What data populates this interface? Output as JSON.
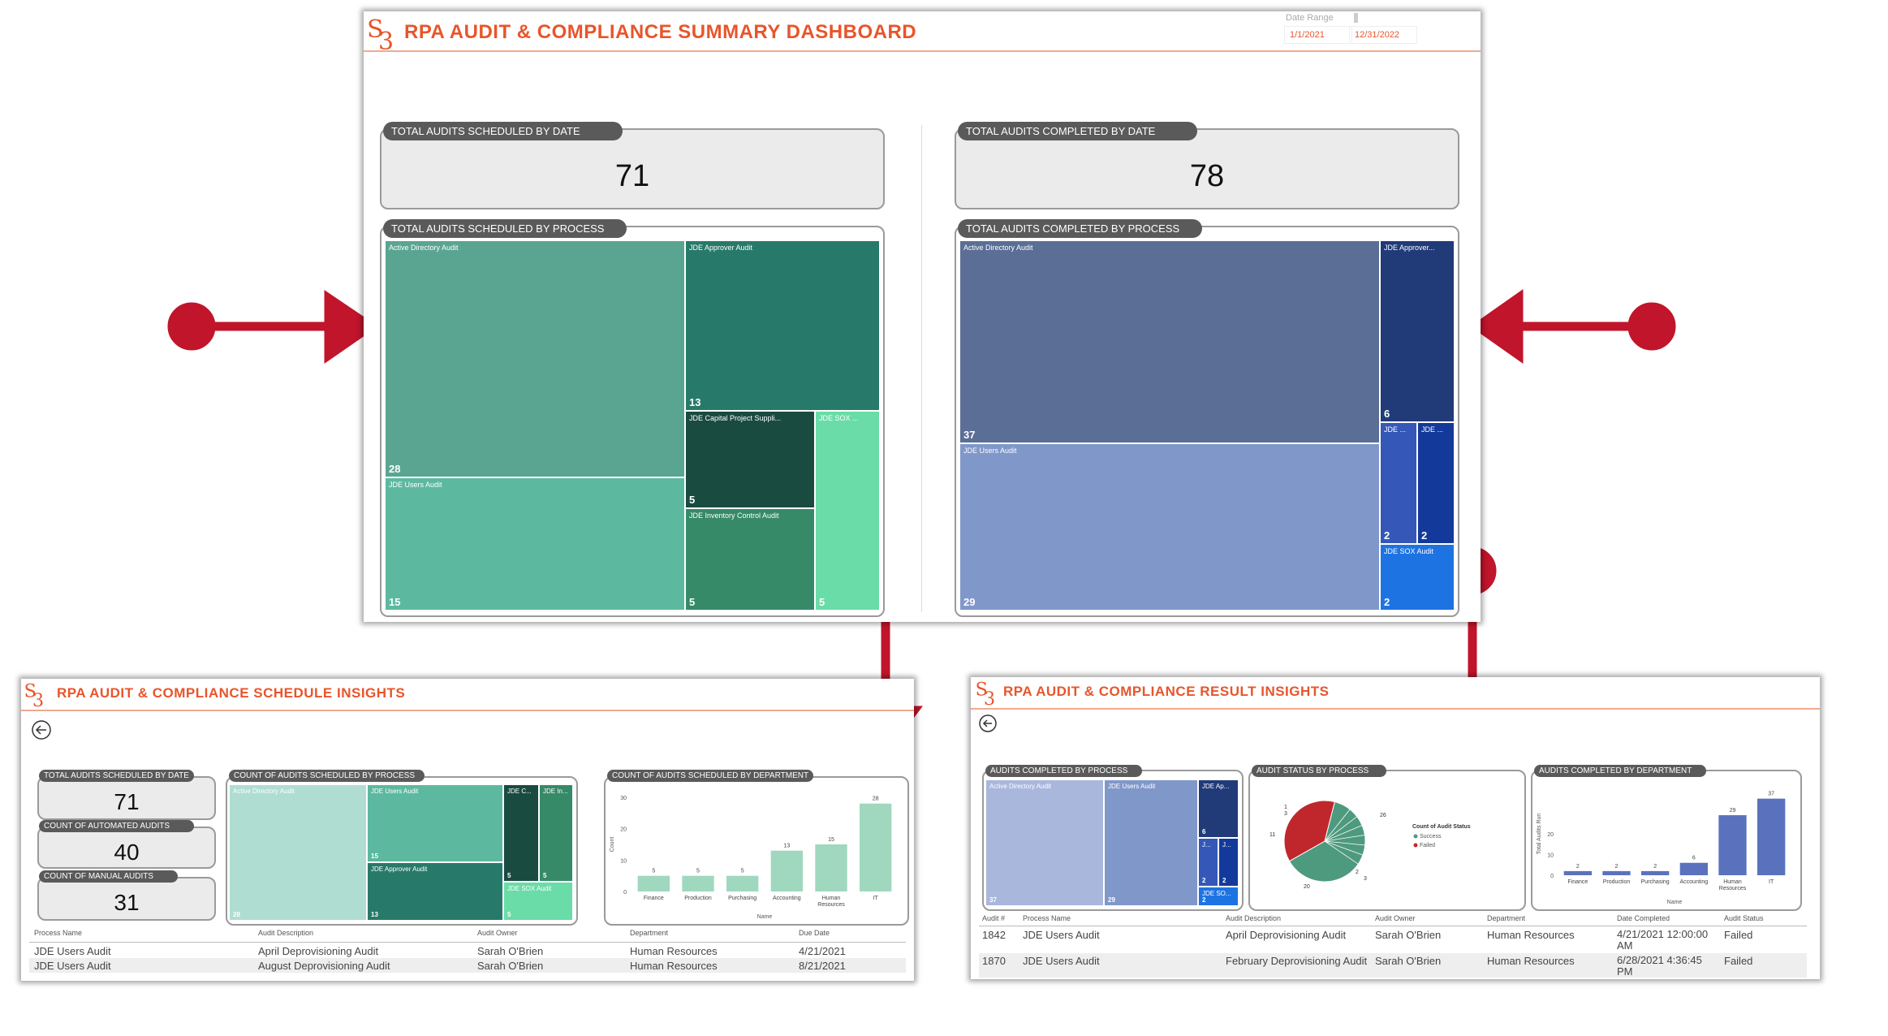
{
  "colors": {
    "accent": "#e8552b",
    "arrow": "#c0152b",
    "pill": "#5a5a5a"
  },
  "main": {
    "title": "RPA AUDIT & COMPLIANCE SUMMARY DASHBOARD",
    "date_range": {
      "label": "Date Range",
      "start": "1/1/2021",
      "end": "12/31/2022"
    },
    "scheduled_by_date": {
      "label": "TOTAL AUDITS SCHEDULED BY DATE",
      "value": "71"
    },
    "completed_by_date": {
      "label": "TOTAL AUDITS COMPLETED BY DATE",
      "value": "78"
    },
    "scheduled_by_process": {
      "label": "TOTAL AUDITS SCHEDULED BY PROCESS",
      "items": [
        {
          "name": "Active Directory Audit",
          "value": "28"
        },
        {
          "name": "JDE Users Audit",
          "value": "15"
        },
        {
          "name": "JDE Approver Audit",
          "value": "13"
        },
        {
          "name": "JDE Capital Project Suppli...",
          "value": "5"
        },
        {
          "name": "JDE Inventory Control Audit",
          "value": "5"
        },
        {
          "name": "JDE SOX ...",
          "value": "5"
        }
      ]
    },
    "completed_by_process": {
      "label": "TOTAL AUDITS COMPLETED BY PROCESS",
      "items": [
        {
          "name": "Active Directory Audit",
          "value": "37"
        },
        {
          "name": "JDE Users Audit",
          "value": "29"
        },
        {
          "name": "JDE Approver...",
          "value": "6"
        },
        {
          "name": "JDE ...",
          "value": "2"
        },
        {
          "name": "JDE ...",
          "value": "2"
        },
        {
          "name": "JDE SOX Audit",
          "value": "2"
        }
      ]
    }
  },
  "schedule": {
    "title": "RPA AUDIT & COMPLIANCE SCHEDULE INSIGHTS",
    "kpi1": {
      "label": "TOTAL AUDITS SCHEDULED BY DATE",
      "value": "71"
    },
    "kpi2": {
      "label": "COUNT OF AUTOMATED AUDITS",
      "value": "40"
    },
    "kpi3": {
      "label": "COUNT OF MANUAL AUDITS",
      "value": "31"
    },
    "treemap": {
      "label": "COUNT OF AUDITS SCHEDULED BY PROCESS",
      "items": [
        {
          "name": "Active Directory Audit",
          "value": "28"
        },
        {
          "name": "JDE Users Audit",
          "value": "15"
        },
        {
          "name": "JDE Approver Audit",
          "value": "13"
        },
        {
          "name": "JDE C...",
          "value": "5"
        },
        {
          "name": "JDE In...",
          "value": "5"
        },
        {
          "name": "JDE SOX Audit",
          "value": "5"
        }
      ]
    },
    "bar_label": "COUNT OF AUDITS SCHEDULED BY DEPARTMENT",
    "table": {
      "headers": [
        "Process Name",
        "Audit Description",
        "Audit Owner",
        "Department",
        "Due Date"
      ],
      "rows": [
        [
          "JDE Users Audit",
          "April Deprovisioning Audit",
          "Sarah O'Brien",
          "Human Resources",
          "4/21/2021"
        ],
        [
          "JDE Users Audit",
          "August Deprovisioning Audit",
          "Sarah O'Brien",
          "Human Resources",
          "8/21/2021"
        ]
      ]
    }
  },
  "result": {
    "title": "RPA AUDIT & COMPLIANCE RESULT INSIGHTS",
    "treemap": {
      "label": "AUDITS COMPLETED BY PROCESS",
      "items": [
        {
          "name": "Active Directory Audit",
          "value": "37"
        },
        {
          "name": "JDE Users Audit",
          "value": "29"
        },
        {
          "name": "JDE Ap...",
          "value": "6"
        },
        {
          "name": "J...",
          "value": "2"
        },
        {
          "name": "J...",
          "value": "2"
        },
        {
          "name": "JDE SO...",
          "value": "2"
        }
      ]
    },
    "pie": {
      "label": "AUDIT STATUS BY PROCESS",
      "legend_title": "Count of Audit Status",
      "legend": [
        "Success",
        "Failed"
      ],
      "labels": [
        "1",
        "3",
        "26",
        "11",
        "20",
        "2",
        "3"
      ]
    },
    "bar_label": "AUDITS COMPLETED BY DEPARTMENT",
    "table": {
      "headers": [
        "Audit #",
        "Process Name",
        "Audit Description",
        "Audit Owner",
        "Department",
        "Date Completed",
        "Audit Status"
      ],
      "rows": [
        [
          "1842",
          "JDE Users Audit",
          "April Deprovisioning Audit",
          "Sarah O'Brien",
          "Human Resources",
          "4/21/2021 12:00:00 AM",
          "Failed"
        ],
        [
          "1870",
          "JDE Users Audit",
          "February Deprovisioning Audit",
          "Sarah O'Brien",
          "Human Resources",
          "6/28/2021 4:36:45 PM",
          "Failed"
        ]
      ]
    }
  },
  "chart_data": [
    {
      "type": "bar",
      "title": "COUNT OF AUDITS SCHEDULED BY DEPARTMENT",
      "categories": [
        "Finance",
        "Production",
        "Purchasing",
        "Accounting",
        "Human Resources",
        "IT"
      ],
      "values": [
        5,
        5,
        5,
        13,
        15,
        28
      ],
      "xlabel": "Name",
      "ylabel": "Count",
      "ylim": [
        0,
        30
      ],
      "yticks": [
        "0",
        "10",
        "20",
        "30"
      ],
      "color": "#9fd8bf"
    },
    {
      "type": "bar",
      "title": "AUDITS COMPLETED BY DEPARTMENT",
      "categories": [
        "Finance",
        "Production",
        "Purchasing",
        "Accounting",
        "Human Resources",
        "IT"
      ],
      "values": [
        2,
        2,
        2,
        6,
        29,
        37
      ],
      "xlabel": "Name",
      "ylabel": "Total Audits Run",
      "ylim": [
        0,
        40
      ],
      "yticks": [
        "0",
        "10",
        "20"
      ],
      "color": "#5a72bd"
    },
    {
      "type": "pie",
      "title": "AUDIT STATUS BY PROCESS",
      "slices": [
        {
          "name": "Success",
          "value": 49
        },
        {
          "name": "Failed",
          "value": 29
        }
      ],
      "colors": [
        "#4e9a7e",
        "#c0272d"
      ]
    }
  ]
}
